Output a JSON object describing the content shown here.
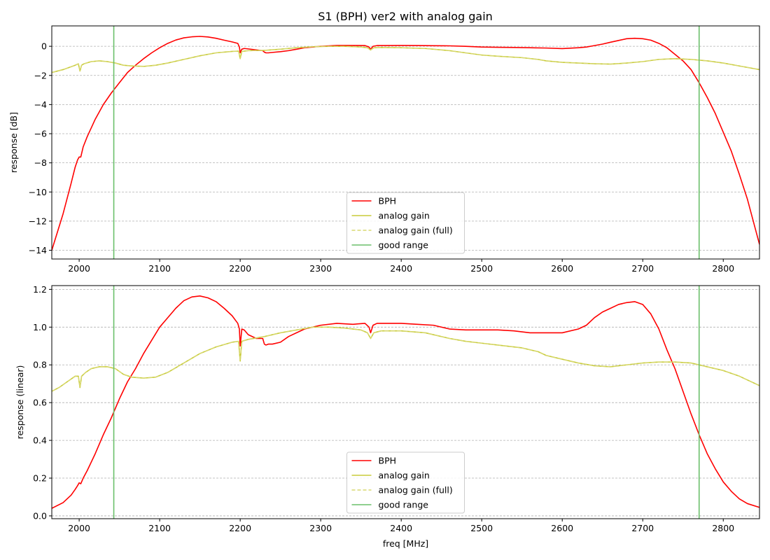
{
  "figure": {
    "title": "S1 (BPH)   ver2   with analog gain"
  },
  "chart_data": [
    {
      "type": "line",
      "title": "S1 (BPH)   ver2   with analog gain",
      "xlabel": "",
      "ylabel": "response [dB]",
      "xlim": [
        1966,
        2845
      ],
      "ylim": [
        -14.6,
        1.4
      ],
      "xticks": [
        2000,
        2100,
        2200,
        2300,
        2400,
        2500,
        2600,
        2700,
        2800
      ],
      "yticks": [
        -14,
        -12,
        -10,
        -8,
        -6,
        -4,
        -2,
        0
      ],
      "ytick_labels": [
        "−14",
        "−12",
        "−10",
        "−8",
        "−6",
        "−4",
        "−2",
        "0"
      ],
      "grid": "horizontal dashed",
      "legend_position": "lower center",
      "good_range": [
        2043,
        2770
      ],
      "series": [
        {
          "name": "BPH",
          "color": "#ff0000",
          "style": "solid",
          "x": [
            1966,
            1980,
            1990,
            1995,
            1998,
            2000,
            2002,
            2005,
            2010,
            2020,
            2030,
            2040,
            2050,
            2060,
            2070,
            2080,
            2090,
            2100,
            2110,
            2120,
            2130,
            2140,
            2150,
            2160,
            2170,
            2180,
            2190,
            2197,
            2199,
            2200,
            2202,
            2205,
            2210,
            2220,
            2228,
            2230,
            2232,
            2235,
            2240,
            2250,
            2260,
            2270,
            2280,
            2290,
            2300,
            2320,
            2340,
            2355,
            2360,
            2362,
            2365,
            2370,
            2380,
            2400,
            2420,
            2440,
            2460,
            2480,
            2500,
            2520,
            2540,
            2560,
            2580,
            2600,
            2620,
            2630,
            2640,
            2650,
            2660,
            2670,
            2680,
            2690,
            2700,
            2710,
            2720,
            2730,
            2740,
            2750,
            2760,
            2770,
            2780,
            2790,
            2800,
            2810,
            2820,
            2830,
            2845
          ],
          "y": [
            -14.0,
            -11.5,
            -9.4,
            -8.3,
            -7.8,
            -7.6,
            -7.6,
            -6.9,
            -6.2,
            -5.0,
            -4.0,
            -3.2,
            -2.5,
            -1.8,
            -1.3,
            -0.85,
            -0.45,
            -0.1,
            0.2,
            0.43,
            0.58,
            0.65,
            0.68,
            0.64,
            0.55,
            0.42,
            0.3,
            0.2,
            -0.05,
            -0.45,
            -0.2,
            -0.15,
            -0.18,
            -0.25,
            -0.3,
            -0.4,
            -0.45,
            -0.45,
            -0.42,
            -0.37,
            -0.3,
            -0.2,
            -0.1,
            -0.05,
            0.0,
            0.06,
            0.06,
            0.05,
            -0.05,
            -0.2,
            0.0,
            0.05,
            0.05,
            0.06,
            0.05,
            0.04,
            0.03,
            0.0,
            -0.05,
            -0.07,
            -0.08,
            -0.1,
            -0.12,
            -0.16,
            -0.1,
            -0.05,
            0.05,
            0.15,
            0.28,
            0.4,
            0.52,
            0.55,
            0.52,
            0.42,
            0.2,
            -0.1,
            -0.55,
            -1.0,
            -1.6,
            -2.5,
            -3.5,
            -4.6,
            -5.9,
            -7.2,
            -8.8,
            -10.5,
            -13.6
          ]
        },
        {
          "name": "analog gain",
          "color": "#c8cc3a",
          "style": "solid",
          "x": [
            1966,
            1980,
            1995,
            1999,
            2001,
            2003,
            2006,
            2015,
            2025,
            2035,
            2045,
            2055,
            2065,
            2080,
            2095,
            2110,
            2130,
            2150,
            2170,
            2190,
            2198,
            2200,
            2202,
            2210,
            2230,
            2250,
            2270,
            2290,
            2310,
            2330,
            2350,
            2358,
            2362,
            2366,
            2375,
            2400,
            2430,
            2460,
            2480,
            2500,
            2520,
            2550,
            2570,
            2580,
            2600,
            2620,
            2640,
            2660,
            2680,
            2700,
            2720,
            2740,
            2760,
            2780,
            2800,
            2820,
            2845
          ],
          "y": [
            -1.8,
            -1.6,
            -1.3,
            -1.2,
            -1.7,
            -1.3,
            -1.2,
            -1.05,
            -1.0,
            -1.05,
            -1.15,
            -1.3,
            -1.35,
            -1.38,
            -1.3,
            -1.15,
            -0.9,
            -0.65,
            -0.45,
            -0.35,
            -0.33,
            -0.85,
            -0.35,
            -0.3,
            -0.28,
            -0.2,
            -0.1,
            -0.03,
            0.0,
            0.0,
            -0.05,
            -0.1,
            -0.25,
            -0.1,
            -0.08,
            -0.1,
            -0.15,
            -0.3,
            -0.45,
            -0.6,
            -0.68,
            -0.78,
            -0.9,
            -1.0,
            -1.1,
            -1.15,
            -1.2,
            -1.22,
            -1.15,
            -1.05,
            -0.9,
            -0.85,
            -0.9,
            -1.0,
            -1.15,
            -1.35,
            -1.6
          ]
        },
        {
          "name": "analog gain (full)",
          "color": "#d8d870",
          "style": "dashed",
          "x": [
            1966,
            1980,
            1995,
            1999,
            2001,
            2003,
            2006,
            2015,
            2025,
            2035,
            2045,
            2055,
            2065,
            2080,
            2095,
            2110,
            2130,
            2150,
            2170,
            2190,
            2198,
            2200,
            2202,
            2210,
            2230,
            2250,
            2270,
            2290,
            2310,
            2330,
            2350,
            2358,
            2362,
            2366,
            2375,
            2400,
            2430,
            2460,
            2480,
            2500,
            2520,
            2550,
            2570,
            2580,
            2600,
            2620,
            2640,
            2660,
            2680,
            2700,
            2720,
            2740,
            2760,
            2780,
            2800,
            2820,
            2845
          ],
          "y": [
            -1.8,
            -1.6,
            -1.3,
            -1.2,
            -1.7,
            -1.3,
            -1.2,
            -1.05,
            -1.0,
            -1.05,
            -1.15,
            -1.3,
            -1.35,
            -1.38,
            -1.3,
            -1.15,
            -0.9,
            -0.65,
            -0.45,
            -0.35,
            -0.33,
            -0.85,
            -0.35,
            -0.3,
            -0.28,
            -0.2,
            -0.1,
            -0.03,
            0.0,
            0.0,
            -0.05,
            -0.1,
            -0.25,
            -0.1,
            -0.08,
            -0.1,
            -0.15,
            -0.3,
            -0.45,
            -0.6,
            -0.68,
            -0.78,
            -0.9,
            -1.0,
            -1.1,
            -1.15,
            -1.2,
            -1.22,
            -1.15,
            -1.05,
            -0.9,
            -0.85,
            -0.9,
            -1.0,
            -1.15,
            -1.35,
            -1.6
          ]
        },
        {
          "name": "good range",
          "color": "#6abf6a",
          "style": "vertical lines"
        }
      ]
    },
    {
      "type": "line",
      "title": "",
      "xlabel": "freq [MHz]",
      "ylabel": "response (linear)",
      "xlim": [
        1966,
        2845
      ],
      "ylim": [
        -0.015,
        1.22
      ],
      "xticks": [
        2000,
        2100,
        2200,
        2300,
        2400,
        2500,
        2600,
        2700,
        2800
      ],
      "yticks": [
        0.0,
        0.2,
        0.4,
        0.6,
        0.8,
        1.0,
        1.2
      ],
      "ytick_labels": [
        "0.0",
        "0.2",
        "0.4",
        "0.6",
        "0.8",
        "1.0",
        "1.2"
      ],
      "grid": "horizontal dashed",
      "legend_position": "lower center",
      "good_range": [
        2043,
        2770
      ],
      "series": [
        {
          "name": "BPH",
          "color": "#ff0000",
          "style": "solid",
          "x": [
            1966,
            1980,
            1990,
            1995,
            1998,
            2000,
            2002,
            2005,
            2010,
            2020,
            2030,
            2040,
            2050,
            2060,
            2070,
            2080,
            2090,
            2100,
            2110,
            2120,
            2130,
            2140,
            2150,
            2160,
            2170,
            2180,
            2190,
            2197,
            2199,
            2200,
            2202,
            2205,
            2210,
            2220,
            2228,
            2230,
            2232,
            2235,
            2240,
            2250,
            2260,
            2270,
            2280,
            2290,
            2300,
            2320,
            2340,
            2355,
            2360,
            2362,
            2365,
            2370,
            2380,
            2400,
            2420,
            2440,
            2460,
            2480,
            2500,
            2520,
            2540,
            2560,
            2580,
            2600,
            2620,
            2630,
            2640,
            2650,
            2660,
            2670,
            2680,
            2690,
            2700,
            2710,
            2720,
            2730,
            2740,
            2750,
            2760,
            2770,
            2780,
            2790,
            2800,
            2810,
            2820,
            2830,
            2845
          ],
          "y": [
            0.04,
            0.07,
            0.11,
            0.14,
            0.16,
            0.175,
            0.17,
            0.2,
            0.24,
            0.33,
            0.43,
            0.52,
            0.62,
            0.71,
            0.78,
            0.86,
            0.93,
            1.0,
            1.05,
            1.1,
            1.14,
            1.16,
            1.165,
            1.155,
            1.135,
            1.1,
            1.06,
            1.02,
            0.99,
            0.9,
            0.99,
            0.985,
            0.96,
            0.94,
            0.94,
            0.91,
            0.905,
            0.91,
            0.91,
            0.92,
            0.95,
            0.97,
            0.99,
            1.0,
            1.01,
            1.02,
            1.015,
            1.02,
            1.0,
            0.97,
            1.01,
            1.02,
            1.02,
            1.02,
            1.015,
            1.01,
            0.99,
            0.985,
            0.985,
            0.985,
            0.98,
            0.97,
            0.97,
            0.97,
            0.99,
            1.01,
            1.05,
            1.08,
            1.1,
            1.12,
            1.13,
            1.135,
            1.12,
            1.07,
            0.99,
            0.88,
            0.78,
            0.66,
            0.54,
            0.43,
            0.33,
            0.25,
            0.18,
            0.13,
            0.09,
            0.065,
            0.045
          ]
        },
        {
          "name": "analog gain",
          "color": "#c8cc3a",
          "style": "solid",
          "x": [
            1966,
            1975,
            1985,
            1995,
            1999,
            2001,
            2003,
            2008,
            2015,
            2025,
            2035,
            2045,
            2055,
            2065,
            2080,
            2095,
            2110,
            2130,
            2150,
            2170,
            2190,
            2198,
            2200,
            2202,
            2210,
            2230,
            2250,
            2270,
            2290,
            2300,
            2310,
            2330,
            2350,
            2358,
            2362,
            2366,
            2375,
            2400,
            2430,
            2460,
            2480,
            2500,
            2520,
            2550,
            2570,
            2580,
            2600,
            2620,
            2640,
            2660,
            2680,
            2700,
            2720,
            2740,
            2760,
            2780,
            2800,
            2820,
            2845
          ],
          "y": [
            0.66,
            0.68,
            0.71,
            0.74,
            0.74,
            0.68,
            0.74,
            0.76,
            0.78,
            0.79,
            0.79,
            0.78,
            0.75,
            0.735,
            0.73,
            0.735,
            0.76,
            0.81,
            0.86,
            0.895,
            0.92,
            0.925,
            0.82,
            0.925,
            0.935,
            0.95,
            0.97,
            0.985,
            1.0,
            1.0,
            1.0,
            0.995,
            0.985,
            0.97,
            0.94,
            0.97,
            0.98,
            0.98,
            0.97,
            0.94,
            0.925,
            0.915,
            0.905,
            0.89,
            0.87,
            0.85,
            0.83,
            0.81,
            0.795,
            0.79,
            0.8,
            0.81,
            0.815,
            0.815,
            0.81,
            0.79,
            0.77,
            0.74,
            0.69
          ]
        },
        {
          "name": "analog gain (full)",
          "color": "#d8d870",
          "style": "dashed",
          "x": [
            1966,
            1975,
            1985,
            1995,
            1999,
            2001,
            2003,
            2008,
            2015,
            2025,
            2035,
            2045,
            2055,
            2065,
            2080,
            2095,
            2110,
            2130,
            2150,
            2170,
            2190,
            2198,
            2200,
            2202,
            2210,
            2230,
            2250,
            2270,
            2290,
            2300,
            2310,
            2330,
            2350,
            2358,
            2362,
            2366,
            2375,
            2400,
            2430,
            2460,
            2480,
            2500,
            2520,
            2550,
            2570,
            2580,
            2600,
            2620,
            2640,
            2660,
            2680,
            2700,
            2720,
            2740,
            2760,
            2780,
            2800,
            2820,
            2845
          ],
          "y": [
            0.66,
            0.68,
            0.71,
            0.74,
            0.74,
            0.68,
            0.74,
            0.76,
            0.78,
            0.79,
            0.79,
            0.78,
            0.75,
            0.735,
            0.73,
            0.735,
            0.76,
            0.81,
            0.86,
            0.895,
            0.92,
            0.925,
            0.82,
            0.925,
            0.935,
            0.95,
            0.97,
            0.985,
            1.0,
            1.0,
            1.0,
            0.995,
            0.985,
            0.97,
            0.94,
            0.97,
            0.98,
            0.98,
            0.97,
            0.94,
            0.925,
            0.915,
            0.905,
            0.89,
            0.87,
            0.85,
            0.83,
            0.81,
            0.795,
            0.79,
            0.8,
            0.81,
            0.815,
            0.815,
            0.81,
            0.79,
            0.77,
            0.74,
            0.69
          ]
        },
        {
          "name": "good range",
          "color": "#6abf6a",
          "style": "vertical lines"
        }
      ]
    }
  ]
}
